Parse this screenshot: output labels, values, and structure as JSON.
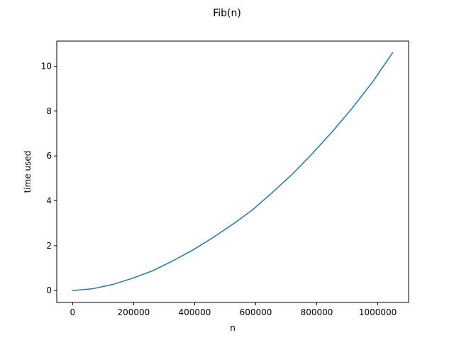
{
  "chart_data": {
    "type": "line",
    "title": "Fib(n)",
    "xlabel": "n",
    "ylabel": "time used",
    "xlim": [
      -52000,
      1101000
    ],
    "ylim": [
      -0.53,
      11.12
    ],
    "x_ticks": [
      0,
      200000,
      400000,
      600000,
      800000,
      1000000
    ],
    "x_tick_labels": [
      "0",
      "200000",
      "400000",
      "600000",
      "800000",
      "1000000"
    ],
    "y_ticks": [
      0,
      2,
      4,
      6,
      8,
      10
    ],
    "y_tick_labels": [
      "0",
      "2",
      "4",
      "6",
      "8",
      "10"
    ],
    "grid": false,
    "legend": "none",
    "line_color": "#1f77b4",
    "series": [
      {
        "x": [
          0,
          65536,
          131072,
          196608,
          262144,
          327680,
          393216,
          458752,
          524288,
          589824,
          655360,
          720896,
          786432,
          851968,
          917504,
          983040,
          1048576
        ],
        "values": [
          0.0,
          0.08,
          0.27,
          0.55,
          0.88,
          1.32,
          1.8,
          2.35,
          2.95,
          3.6,
          4.38,
          5.2,
          6.12,
          7.1,
          8.15,
          9.3,
          10.6
        ]
      }
    ]
  }
}
